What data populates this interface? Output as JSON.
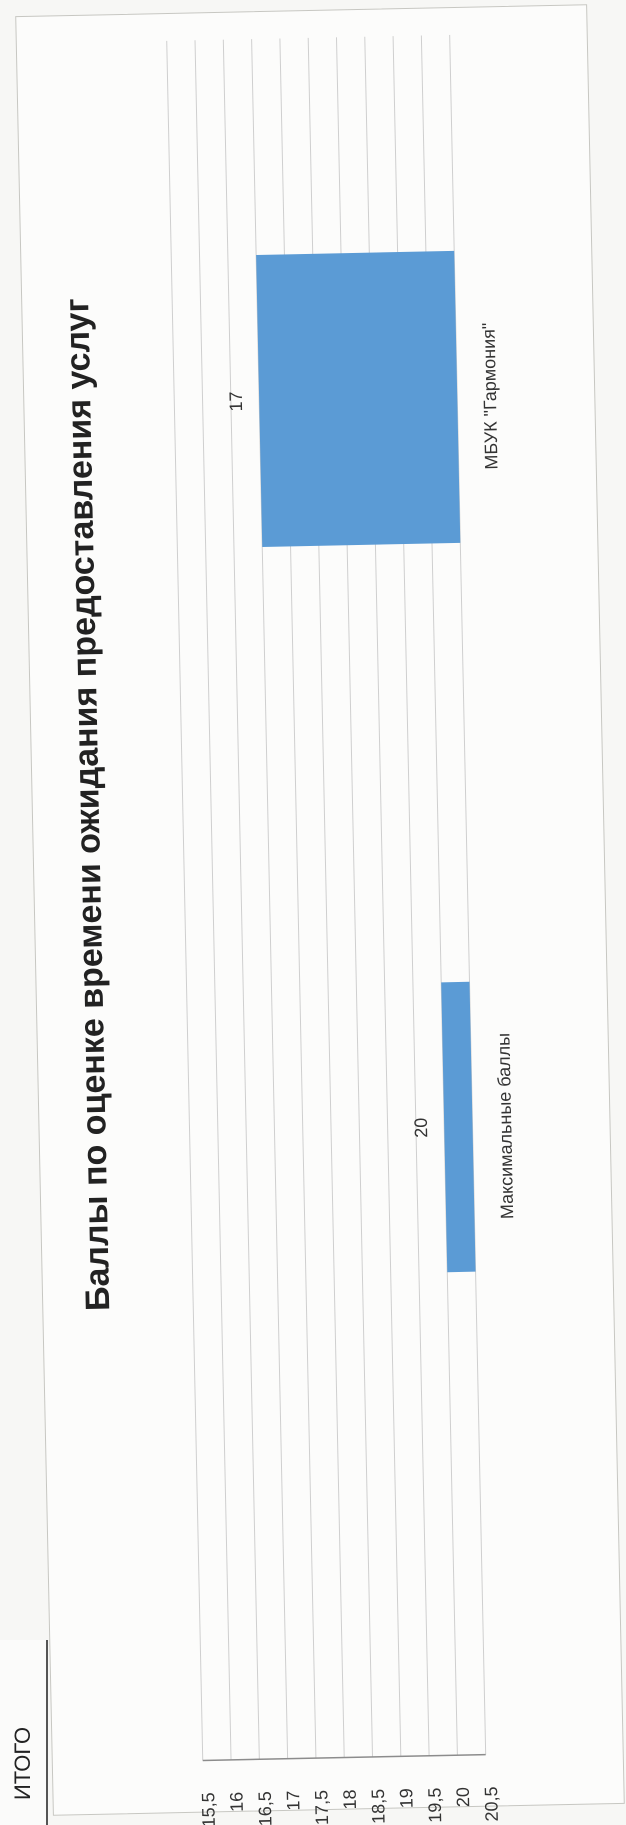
{
  "page": {
    "fragment_text": "ИТОГО"
  },
  "chart_data": {
    "type": "bar",
    "title": "Баллы по оценке времени ожидания предоставления услуг",
    "categories": [
      "Максимальные баллы",
      "МБУК \"Гармония\""
    ],
    "values": [
      20,
      17
    ],
    "data_labels": [
      "20",
      "17"
    ],
    "ylim": [
      15.5,
      20.5
    ],
    "y_ticks": [
      "15,5",
      "16",
      "16,5",
      "17",
      "17,5",
      "18",
      "18,5",
      "19",
      "19,5",
      "20",
      "20,5"
    ],
    "grid": true,
    "orientation": "rotated-page",
    "colors": {
      "bar": "#5b9bd5",
      "grid": "#cfcfcf",
      "axis": "#8c8c8c",
      "text": "#333333"
    }
  }
}
